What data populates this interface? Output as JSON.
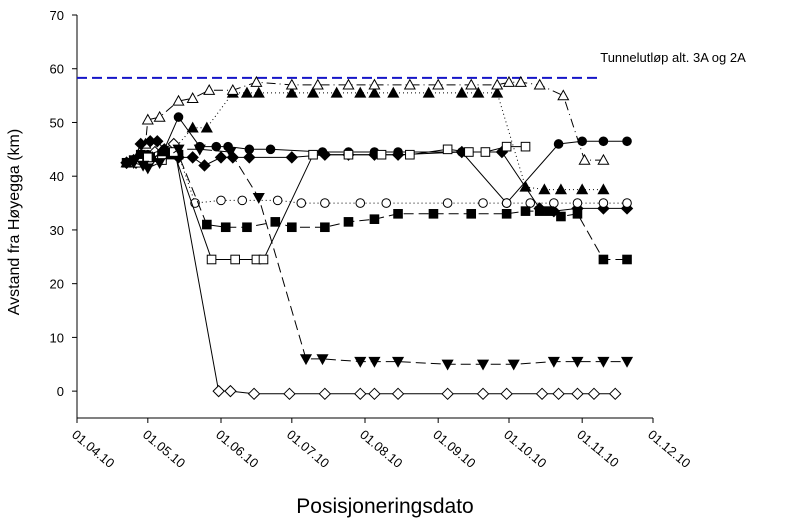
{
  "chart_data": {
    "type": "line",
    "xlabel": "Posisjoneringsdato",
    "ylabel": "Avstand fra Høyegga (km)",
    "x_range": [
      "2010-04-01",
      "2010-12-01"
    ],
    "x_ticks": [
      {
        "date": "2010-04-01",
        "label": "01.04.10"
      },
      {
        "date": "2010-05-01",
        "label": "01.05.10"
      },
      {
        "date": "2010-06-01",
        "label": "01.06.10"
      },
      {
        "date": "2010-07-01",
        "label": "01.07.10"
      },
      {
        "date": "2010-08-01",
        "label": "01.08.10"
      },
      {
        "date": "2010-09-01",
        "label": "01.09.10"
      },
      {
        "date": "2010-10-01",
        "label": "01.10.10"
      },
      {
        "date": "2010-11-01",
        "label": "01.11.10"
      },
      {
        "date": "2010-12-01",
        "label": "01.12.10"
      }
    ],
    "ylim": [
      -5,
      70
    ],
    "y_ticks": [
      0,
      10,
      20,
      30,
      40,
      50,
      60,
      70
    ],
    "grid": false,
    "reference_line": {
      "y": 58.3,
      "label": "Tunnelutløp alt. 3A og 2A",
      "color": "#1515c8",
      "style": "dashed"
    },
    "series": [
      {
        "marker": "diamond-open",
        "line": "solid",
        "points": [
          {
            "x": "2010-04-22",
            "y": 42.5
          },
          {
            "x": "2010-04-26",
            "y": 42.5
          },
          {
            "x": "2010-04-30",
            "y": 42.5
          },
          {
            "x": "2010-05-04",
            "y": 44.5
          },
          {
            "x": "2010-05-12",
            "y": 46
          },
          {
            "x": "2010-05-31",
            "y": 0
          },
          {
            "x": "2010-06-05",
            "y": 0
          },
          {
            "x": "2010-06-15",
            "y": -0.5
          },
          {
            "x": "2010-06-30",
            "y": -0.5
          },
          {
            "x": "2010-07-15",
            "y": -0.5
          },
          {
            "x": "2010-07-30",
            "y": -0.5
          },
          {
            "x": "2010-08-05",
            "y": -0.5
          },
          {
            "x": "2010-08-15",
            "y": -0.5
          },
          {
            "x": "2010-09-05",
            "y": -0.5
          },
          {
            "x": "2010-09-20",
            "y": -0.5
          },
          {
            "x": "2010-09-30",
            "y": -0.5
          },
          {
            "x": "2010-10-15",
            "y": -0.5
          },
          {
            "x": "2010-10-22",
            "y": -0.5
          },
          {
            "x": "2010-10-30",
            "y": -0.5
          },
          {
            "x": "2010-11-06",
            "y": -0.5
          },
          {
            "x": "2010-11-15",
            "y": -0.5
          }
        ]
      },
      {
        "marker": "triangle-filled",
        "line": "dotted",
        "points": [
          {
            "x": "2010-04-25",
            "y": 42.5
          },
          {
            "x": "2010-04-29",
            "y": 43
          },
          {
            "x": "2010-05-03",
            "y": 43.5
          },
          {
            "x": "2010-05-10",
            "y": 44
          },
          {
            "x": "2010-05-20",
            "y": 49
          },
          {
            "x": "2010-05-26",
            "y": 49
          },
          {
            "x": "2010-06-06",
            "y": 55.5
          },
          {
            "x": "2010-06-12",
            "y": 55.5
          },
          {
            "x": "2010-06-17",
            "y": 55.5
          },
          {
            "x": "2010-07-01",
            "y": 55.5
          },
          {
            "x": "2010-07-10",
            "y": 55.5
          },
          {
            "x": "2010-07-20",
            "y": 55.5
          },
          {
            "x": "2010-07-30",
            "y": 55.5
          },
          {
            "x": "2010-08-05",
            "y": 55.5
          },
          {
            "x": "2010-08-13",
            "y": 55.5
          },
          {
            "x": "2010-08-28",
            "y": 55.5
          },
          {
            "x": "2010-09-11",
            "y": 55.5
          },
          {
            "x": "2010-09-18",
            "y": 55.5
          },
          {
            "x": "2010-09-26",
            "y": 55.5
          },
          {
            "x": "2010-10-08",
            "y": 38
          },
          {
            "x": "2010-10-16",
            "y": 37.5
          },
          {
            "x": "2010-10-23",
            "y": 37.5
          },
          {
            "x": "2010-11-01",
            "y": 37.5
          },
          {
            "x": "2010-11-10",
            "y": 37.5
          }
        ]
      },
      {
        "marker": "triangle-open",
        "line": "dash-dot",
        "points": [
          {
            "x": "2010-04-22",
            "y": 42.5
          },
          {
            "x": "2010-04-27",
            "y": 44
          },
          {
            "x": "2010-04-30",
            "y": 46
          },
          {
            "x": "2010-05-01",
            "y": 50.5
          },
          {
            "x": "2010-05-06",
            "y": 51
          },
          {
            "x": "2010-05-14",
            "y": 54
          },
          {
            "x": "2010-05-20",
            "y": 54.5
          },
          {
            "x": "2010-05-27",
            "y": 56
          },
          {
            "x": "2010-06-06",
            "y": 56
          },
          {
            "x": "2010-06-16",
            "y": 57.5
          },
          {
            "x": "2010-07-01",
            "y": 57
          },
          {
            "x": "2010-07-12",
            "y": 57
          },
          {
            "x": "2010-07-25",
            "y": 57
          },
          {
            "x": "2010-08-05",
            "y": 57
          },
          {
            "x": "2010-08-20",
            "y": 57
          },
          {
            "x": "2010-09-01",
            "y": 57
          },
          {
            "x": "2010-09-15",
            "y": 57
          },
          {
            "x": "2010-09-26",
            "y": 57
          },
          {
            "x": "2010-10-01",
            "y": 57.5
          },
          {
            "x": "2010-10-06",
            "y": 57.5
          },
          {
            "x": "2010-10-14",
            "y": 57
          },
          {
            "x": "2010-10-24",
            "y": 55
          },
          {
            "x": "2010-11-02",
            "y": 43
          },
          {
            "x": "2010-11-10",
            "y": 43
          }
        ]
      },
      {
        "marker": "circle-filled",
        "line": "solid",
        "points": [
          {
            "x": "2010-04-25",
            "y": 42.5
          },
          {
            "x": "2010-04-29",
            "y": 43.5
          },
          {
            "x": "2010-05-01",
            "y": 44
          },
          {
            "x": "2010-05-08",
            "y": 45
          },
          {
            "x": "2010-05-14",
            "y": 51
          },
          {
            "x": "2010-05-23",
            "y": 45.5
          },
          {
            "x": "2010-05-30",
            "y": 45.5
          },
          {
            "x": "2010-06-04",
            "y": 45.5
          },
          {
            "x": "2010-06-13",
            "y": 45
          },
          {
            "x": "2010-06-22",
            "y": 45
          },
          {
            "x": "2010-07-14",
            "y": 44.5
          },
          {
            "x": "2010-07-25",
            "y": 44.5
          },
          {
            "x": "2010-08-05",
            "y": 44.5
          },
          {
            "x": "2010-08-15",
            "y": 44.5
          },
          {
            "x": "2010-09-11",
            "y": 44.5
          },
          {
            "x": "2010-09-30",
            "y": 35
          },
          {
            "x": "2010-10-22",
            "y": 46
          },
          {
            "x": "2010-11-01",
            "y": 46.5
          },
          {
            "x": "2010-11-10",
            "y": 46.5
          },
          {
            "x": "2010-11-20",
            "y": 46.5
          }
        ]
      },
      {
        "marker": "diamond-filled",
        "line": "solid",
        "points": [
          {
            "x": "2010-04-22",
            "y": 42.5
          },
          {
            "x": "2010-04-25",
            "y": 43
          },
          {
            "x": "2010-04-28",
            "y": 46
          },
          {
            "x": "2010-05-02",
            "y": 46.5
          },
          {
            "x": "2010-05-05",
            "y": 46.5
          },
          {
            "x": "2010-05-08",
            "y": 45
          },
          {
            "x": "2010-05-14",
            "y": 43.5
          },
          {
            "x": "2010-05-20",
            "y": 43.5
          },
          {
            "x": "2010-05-25",
            "y": 42
          },
          {
            "x": "2010-06-01",
            "y": 43.5
          },
          {
            "x": "2010-06-06",
            "y": 43.5
          },
          {
            "x": "2010-06-13",
            "y": 43.5
          },
          {
            "x": "2010-07-01",
            "y": 43.5
          },
          {
            "x": "2010-07-15",
            "y": 44
          },
          {
            "x": "2010-07-25",
            "y": 44
          },
          {
            "x": "2010-08-05",
            "y": 44
          },
          {
            "x": "2010-08-15",
            "y": 44
          },
          {
            "x": "2010-09-11",
            "y": 44.5
          },
          {
            "x": "2010-09-28",
            "y": 44.5
          },
          {
            "x": "2010-10-14",
            "y": 34
          },
          {
            "x": "2010-10-20",
            "y": 33.5
          },
          {
            "x": "2010-10-30",
            "y": 34
          },
          {
            "x": "2010-11-10",
            "y": 34
          },
          {
            "x": "2010-11-20",
            "y": 34
          }
        ]
      },
      {
        "marker": "circle-open",
        "line": "dotted",
        "points": [
          {
            "x": "2010-04-25",
            "y": 42.5
          },
          {
            "x": "2010-04-29",
            "y": 43
          },
          {
            "x": "2010-05-02",
            "y": 43
          },
          {
            "x": "2010-05-07",
            "y": 43
          },
          {
            "x": "2010-05-14",
            "y": 44
          },
          {
            "x": "2010-05-21",
            "y": 35
          },
          {
            "x": "2010-06-01",
            "y": 35.5
          },
          {
            "x": "2010-06-10",
            "y": 35.5
          },
          {
            "x": "2010-06-25",
            "y": 35.5
          },
          {
            "x": "2010-07-05",
            "y": 35
          },
          {
            "x": "2010-07-15",
            "y": 35
          },
          {
            "x": "2010-07-30",
            "y": 35
          },
          {
            "x": "2010-08-10",
            "y": 35
          },
          {
            "x": "2010-09-05",
            "y": 35
          },
          {
            "x": "2010-09-20",
            "y": 35
          },
          {
            "x": "2010-09-30",
            "y": 35
          },
          {
            "x": "2010-10-10",
            "y": 35
          },
          {
            "x": "2010-10-20",
            "y": 35
          },
          {
            "x": "2010-10-30",
            "y": 35
          },
          {
            "x": "2010-11-10",
            "y": 35
          },
          {
            "x": "2010-11-20",
            "y": 35
          }
        ]
      },
      {
        "marker": "square-filled",
        "line": "long-dash",
        "points": [
          {
            "x": "2010-04-22",
            "y": 42.5
          },
          {
            "x": "2010-04-25",
            "y": 43
          },
          {
            "x": "2010-04-28",
            "y": 44
          },
          {
            "x": "2010-05-02",
            "y": 43.5
          },
          {
            "x": "2010-05-07",
            "y": 44
          },
          {
            "x": "2010-05-14",
            "y": 44
          },
          {
            "x": "2010-05-26",
            "y": 31
          },
          {
            "x": "2010-06-03",
            "y": 30.5
          },
          {
            "x": "2010-06-12",
            "y": 30.5
          },
          {
            "x": "2010-06-24",
            "y": 31.5
          },
          {
            "x": "2010-07-01",
            "y": 30.5
          },
          {
            "x": "2010-07-15",
            "y": 30.5
          },
          {
            "x": "2010-07-25",
            "y": 31.5
          },
          {
            "x": "2010-08-05",
            "y": 32
          },
          {
            "x": "2010-08-15",
            "y": 33
          },
          {
            "x": "2010-08-30",
            "y": 33
          },
          {
            "x": "2010-09-15",
            "y": 33
          },
          {
            "x": "2010-09-30",
            "y": 33
          },
          {
            "x": "2010-10-08",
            "y": 33.5
          },
          {
            "x": "2010-10-14",
            "y": 33.5
          },
          {
            "x": "2010-10-18",
            "y": 33.5
          },
          {
            "x": "2010-10-23",
            "y": 32.5
          },
          {
            "x": "2010-10-30",
            "y": 33
          },
          {
            "x": "2010-11-10",
            "y": 24.5
          },
          {
            "x": "2010-11-20",
            "y": 24.5
          }
        ]
      },
      {
        "marker": "square-open",
        "line": "solid",
        "points": [
          {
            "x": "2010-04-27",
            "y": 42.5
          },
          {
            "x": "2010-05-01",
            "y": 43.5
          },
          {
            "x": "2010-05-07",
            "y": 43
          },
          {
            "x": "2010-05-12",
            "y": 44.5
          },
          {
            "x": "2010-05-28",
            "y": 24.5
          },
          {
            "x": "2010-06-07",
            "y": 24.5
          },
          {
            "x": "2010-06-16",
            "y": 24.5
          },
          {
            "x": "2010-06-19",
            "y": 24.5
          },
          {
            "x": "2010-07-10",
            "y": 44
          },
          {
            "x": "2010-07-25",
            "y": 44
          },
          {
            "x": "2010-08-08",
            "y": 44
          },
          {
            "x": "2010-08-20",
            "y": 44
          },
          {
            "x": "2010-09-05",
            "y": 45
          },
          {
            "x": "2010-09-14",
            "y": 44.5
          },
          {
            "x": "2010-09-21",
            "y": 44.5
          },
          {
            "x": "2010-09-30",
            "y": 45.5
          },
          {
            "x": "2010-10-08",
            "y": 45.5
          }
        ]
      },
      {
        "marker": "triangle-down-filled",
        "line": "long-dash",
        "points": [
          {
            "x": "2010-04-25",
            "y": 42.5
          },
          {
            "x": "2010-04-29",
            "y": 42
          },
          {
            "x": "2010-05-01",
            "y": 41.5
          },
          {
            "x": "2010-05-06",
            "y": 42.5
          },
          {
            "x": "2010-05-14",
            "y": 45
          },
          {
            "x": "2010-05-23",
            "y": 45
          },
          {
            "x": "2010-06-05",
            "y": 44.5
          },
          {
            "x": "2010-06-17",
            "y": 36
          },
          {
            "x": "2010-07-07",
            "y": 6
          },
          {
            "x": "2010-07-14",
            "y": 6
          },
          {
            "x": "2010-07-30",
            "y": 5.5
          },
          {
            "x": "2010-08-05",
            "y": 5.5
          },
          {
            "x": "2010-08-15",
            "y": 5.5
          },
          {
            "x": "2010-09-05",
            "y": 5
          },
          {
            "x": "2010-09-20",
            "y": 5
          },
          {
            "x": "2010-10-03",
            "y": 5
          },
          {
            "x": "2010-10-20",
            "y": 5.5
          },
          {
            "x": "2010-10-30",
            "y": 5.5
          },
          {
            "x": "2010-11-10",
            "y": 5.5
          },
          {
            "x": "2010-11-20",
            "y": 5.5
          }
        ]
      }
    ]
  }
}
